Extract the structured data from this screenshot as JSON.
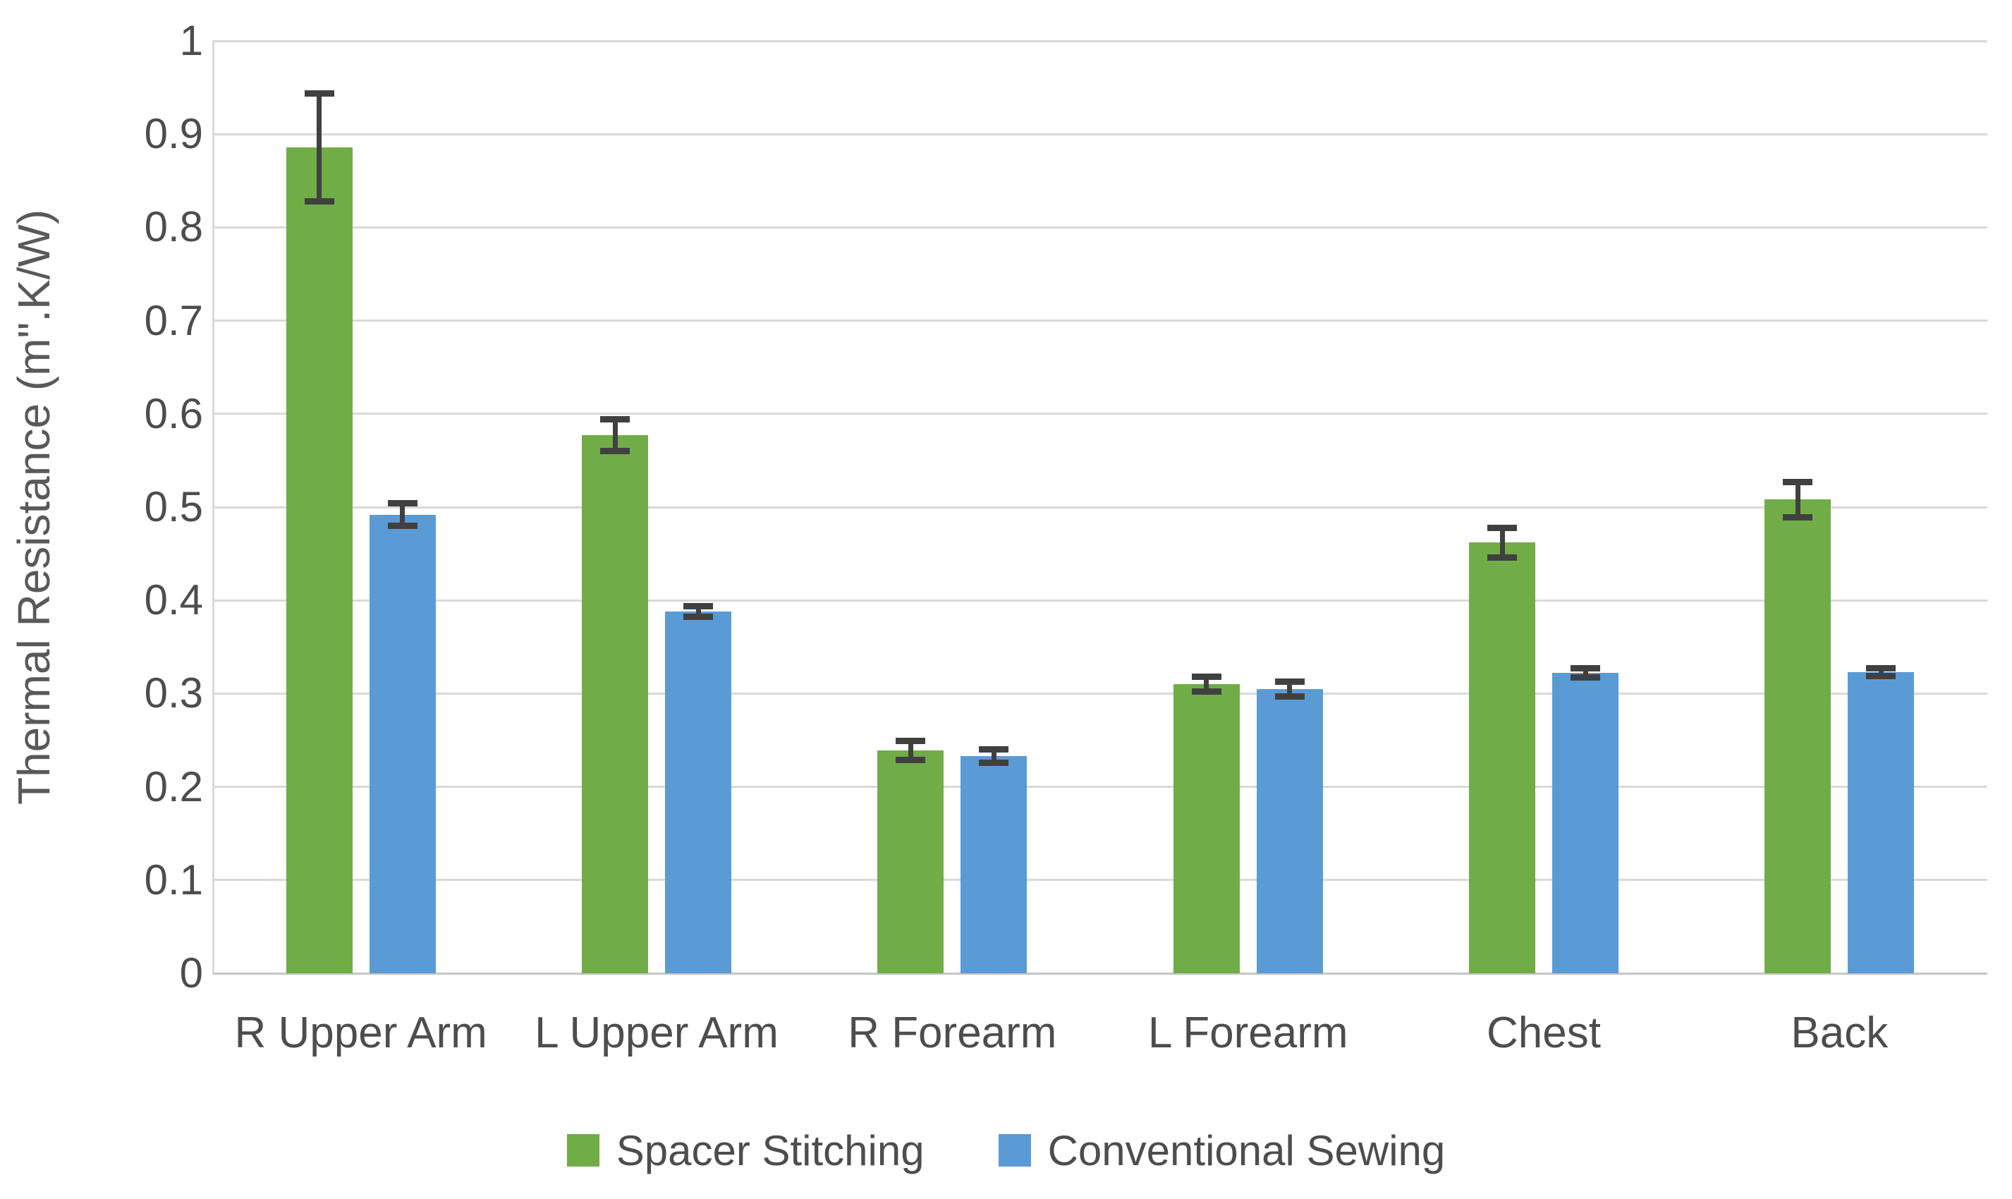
{
  "chart_data": {
    "type": "bar",
    "title": "",
    "categories": [
      "R Upper Arm",
      "L Upper Arm",
      "R Forearm",
      "L Forearm",
      "Chest",
      "Back"
    ],
    "series": [
      {
        "name": "Spacer Stitching",
        "color": "#70AD47",
        "values": [
          0.886,
          0.577,
          0.239,
          0.31,
          0.462,
          0.508
        ],
        "errors": [
          0.058,
          0.017,
          0.01,
          0.008,
          0.016,
          0.019
        ]
      },
      {
        "name": "Conventional Sewing",
        "color": "#5B9BD5",
        "values": [
          0.492,
          0.388,
          0.233,
          0.305,
          0.322,
          0.323
        ],
        "errors": [
          0.012,
          0.006,
          0.007,
          0.008,
          0.005,
          0.004
        ]
      }
    ],
    "xlabel": "",
    "ylabel": "Thermal Resistance (m\".K/W)",
    "ylim": [
      0,
      1
    ],
    "ytick_step": 0.1,
    "ytick_labels": [
      "0",
      "0.1",
      "0.2",
      "0.3",
      "0.4",
      "0.5",
      "0.6",
      "0.7",
      "0.8",
      "0.9",
      "1"
    ],
    "grid": true,
    "legend_position": "bottom",
    "error_bar_color": "#404040",
    "gridline_color": "#D9D9D9",
    "axis_text_color": "#595959",
    "background": "#FFFFFF"
  }
}
